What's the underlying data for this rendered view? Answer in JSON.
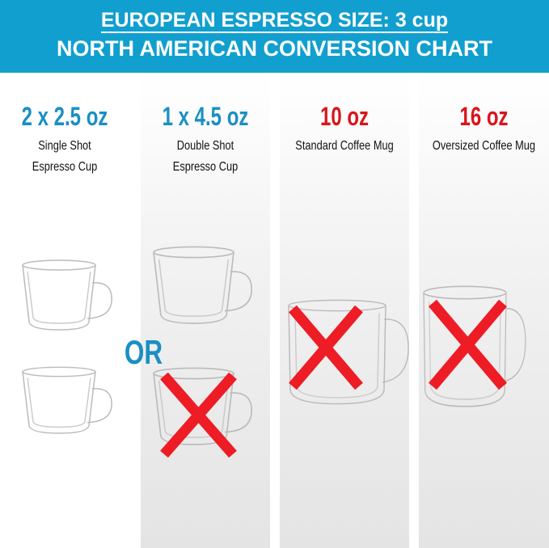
{
  "header": {
    "line1": "EUROPEAN ESPRESSO SIZE: 3 cup",
    "line2": "NORTH AMERICAN CONVERSION CHART"
  },
  "columns": [
    {
      "size": "2 x 2.5 oz",
      "desc1": "Single Shot",
      "desc2": "Espresso Cup",
      "size_color": "#1a8fc4"
    },
    {
      "size": "1 x 4.5 oz",
      "desc1": "Double Shot",
      "desc2": "Espresso Cup",
      "size_color": "#1a8fc4"
    },
    {
      "size": "10 oz",
      "desc1": "Standard Coffee Mug",
      "desc2": "",
      "size_color": "#d9151b"
    },
    {
      "size": "16 oz",
      "desc1": "Oversized Coffee Mug",
      "desc2": "",
      "size_color": "#d9151b"
    }
  ],
  "or_label": "OR",
  "cross_color": "#ee1c25"
}
